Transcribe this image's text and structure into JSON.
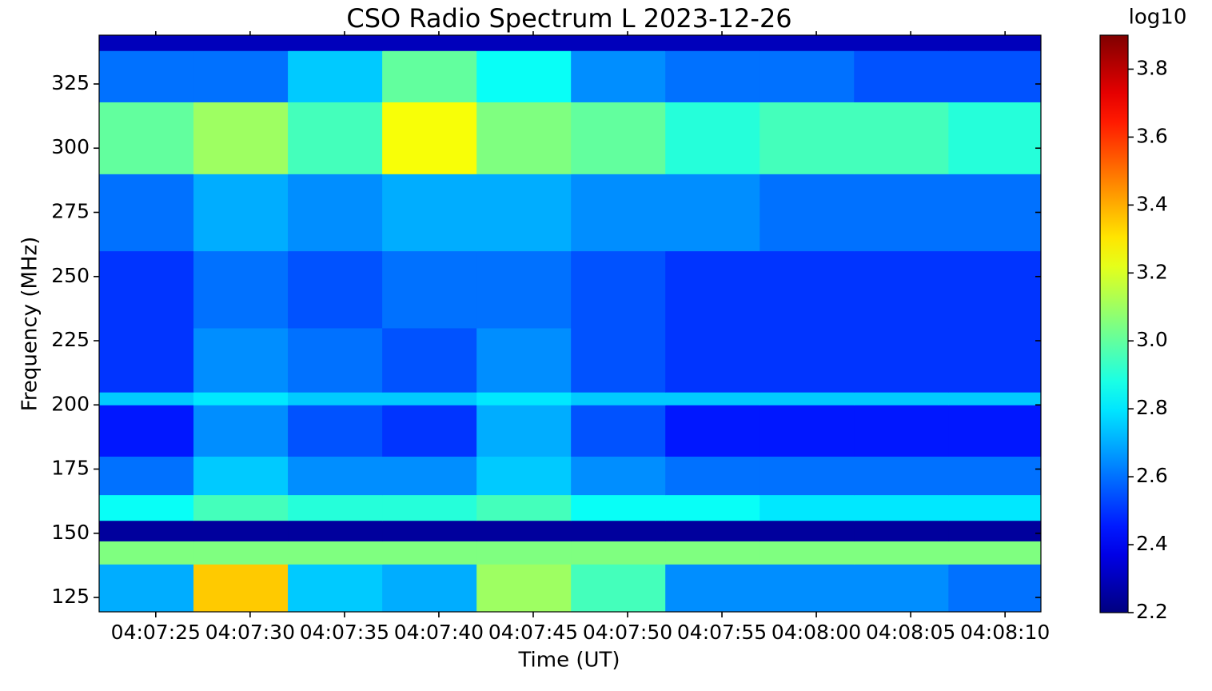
{
  "chart_data": {
    "type": "spectrogram",
    "title": "CSO Radio Spectrum L 2023-12-26",
    "xlabel": "Time (UT)",
    "ylabel": "Frequency (MHz)",
    "colorbar_label": "log10",
    "colormap": "jet",
    "xlim": [
      "04:07:22.0",
      "04:08:11.9"
    ],
    "xticks": [
      "04:07:25",
      "04:07:30",
      "04:07:35",
      "04:07:40",
      "04:07:45",
      "04:07:50",
      "04:07:55",
      "04:08:00",
      "04:08:05",
      "04:08:10"
    ],
    "ylim": [
      119.4,
      344
    ],
    "yticks": [
      125,
      150,
      175,
      200,
      225,
      250,
      275,
      300,
      325
    ],
    "clim": [
      2.2,
      3.9
    ],
    "cticks": [
      2.2,
      2.4,
      2.6,
      2.8,
      {
        "value": 3,
        "label": "3.0"
      },
      3.2,
      3.4,
      3.6,
      3.8
    ],
    "time_bins": [
      "04:07:22.0",
      "04:07:27",
      "04:07:32",
      "04:07:37",
      "04:07:42",
      "04:07:47",
      "04:07:52",
      "04:07:57",
      "04:08:02",
      "04:08:07",
      "04:08:11.9"
    ],
    "freq_bins": [
      119.4,
      138,
      147,
      155,
      165,
      180,
      200,
      205,
      230,
      260,
      290,
      318,
      338,
      344
    ],
    "z": [
      [
        2.7,
        3.35,
        2.75,
        2.7,
        3.1,
        2.95,
        2.65,
        2.65,
        2.65,
        2.6
      ],
      [
        3.05,
        3.05,
        3.05,
        3.05,
        3.05,
        3.05,
        3.05,
        3.05,
        3.05,
        3.05
      ],
      [
        2.25,
        2.25,
        2.25,
        2.25,
        2.25,
        2.25,
        2.25,
        2.25,
        2.25,
        2.25
      ],
      [
        2.85,
        2.95,
        2.9,
        2.9,
        2.95,
        2.85,
        2.85,
        2.8,
        2.8,
        2.8
      ],
      [
        2.6,
        2.75,
        2.65,
        2.65,
        2.75,
        2.65,
        2.6,
        2.6,
        2.6,
        2.6
      ],
      [
        2.45,
        2.65,
        2.55,
        2.5,
        2.7,
        2.55,
        2.45,
        2.45,
        2.45,
        2.45
      ],
      [
        2.75,
        2.8,
        2.75,
        2.75,
        2.8,
        2.75,
        2.75,
        2.75,
        2.75,
        2.75
      ],
      [
        2.5,
        2.65,
        2.6,
        2.55,
        2.65,
        2.55,
        2.5,
        2.5,
        2.5,
        2.5
      ],
      [
        2.5,
        2.6,
        2.55,
        2.6,
        2.6,
        2.55,
        2.5,
        2.5,
        2.5,
        2.5
      ],
      [
        2.6,
        2.7,
        2.65,
        2.7,
        2.7,
        2.65,
        2.65,
        2.6,
        2.6,
        2.6
      ],
      [
        3.0,
        3.1,
        2.95,
        3.25,
        3.05,
        3.0,
        2.9,
        2.95,
        2.95,
        2.9
      ],
      [
        2.6,
        2.6,
        2.75,
        3.0,
        2.85,
        2.65,
        2.6,
        2.6,
        2.55,
        2.55
      ],
      [
        2.3,
        2.3,
        2.3,
        2.3,
        2.3,
        2.3,
        2.3,
        2.3,
        2.3,
        2.3
      ]
    ]
  }
}
